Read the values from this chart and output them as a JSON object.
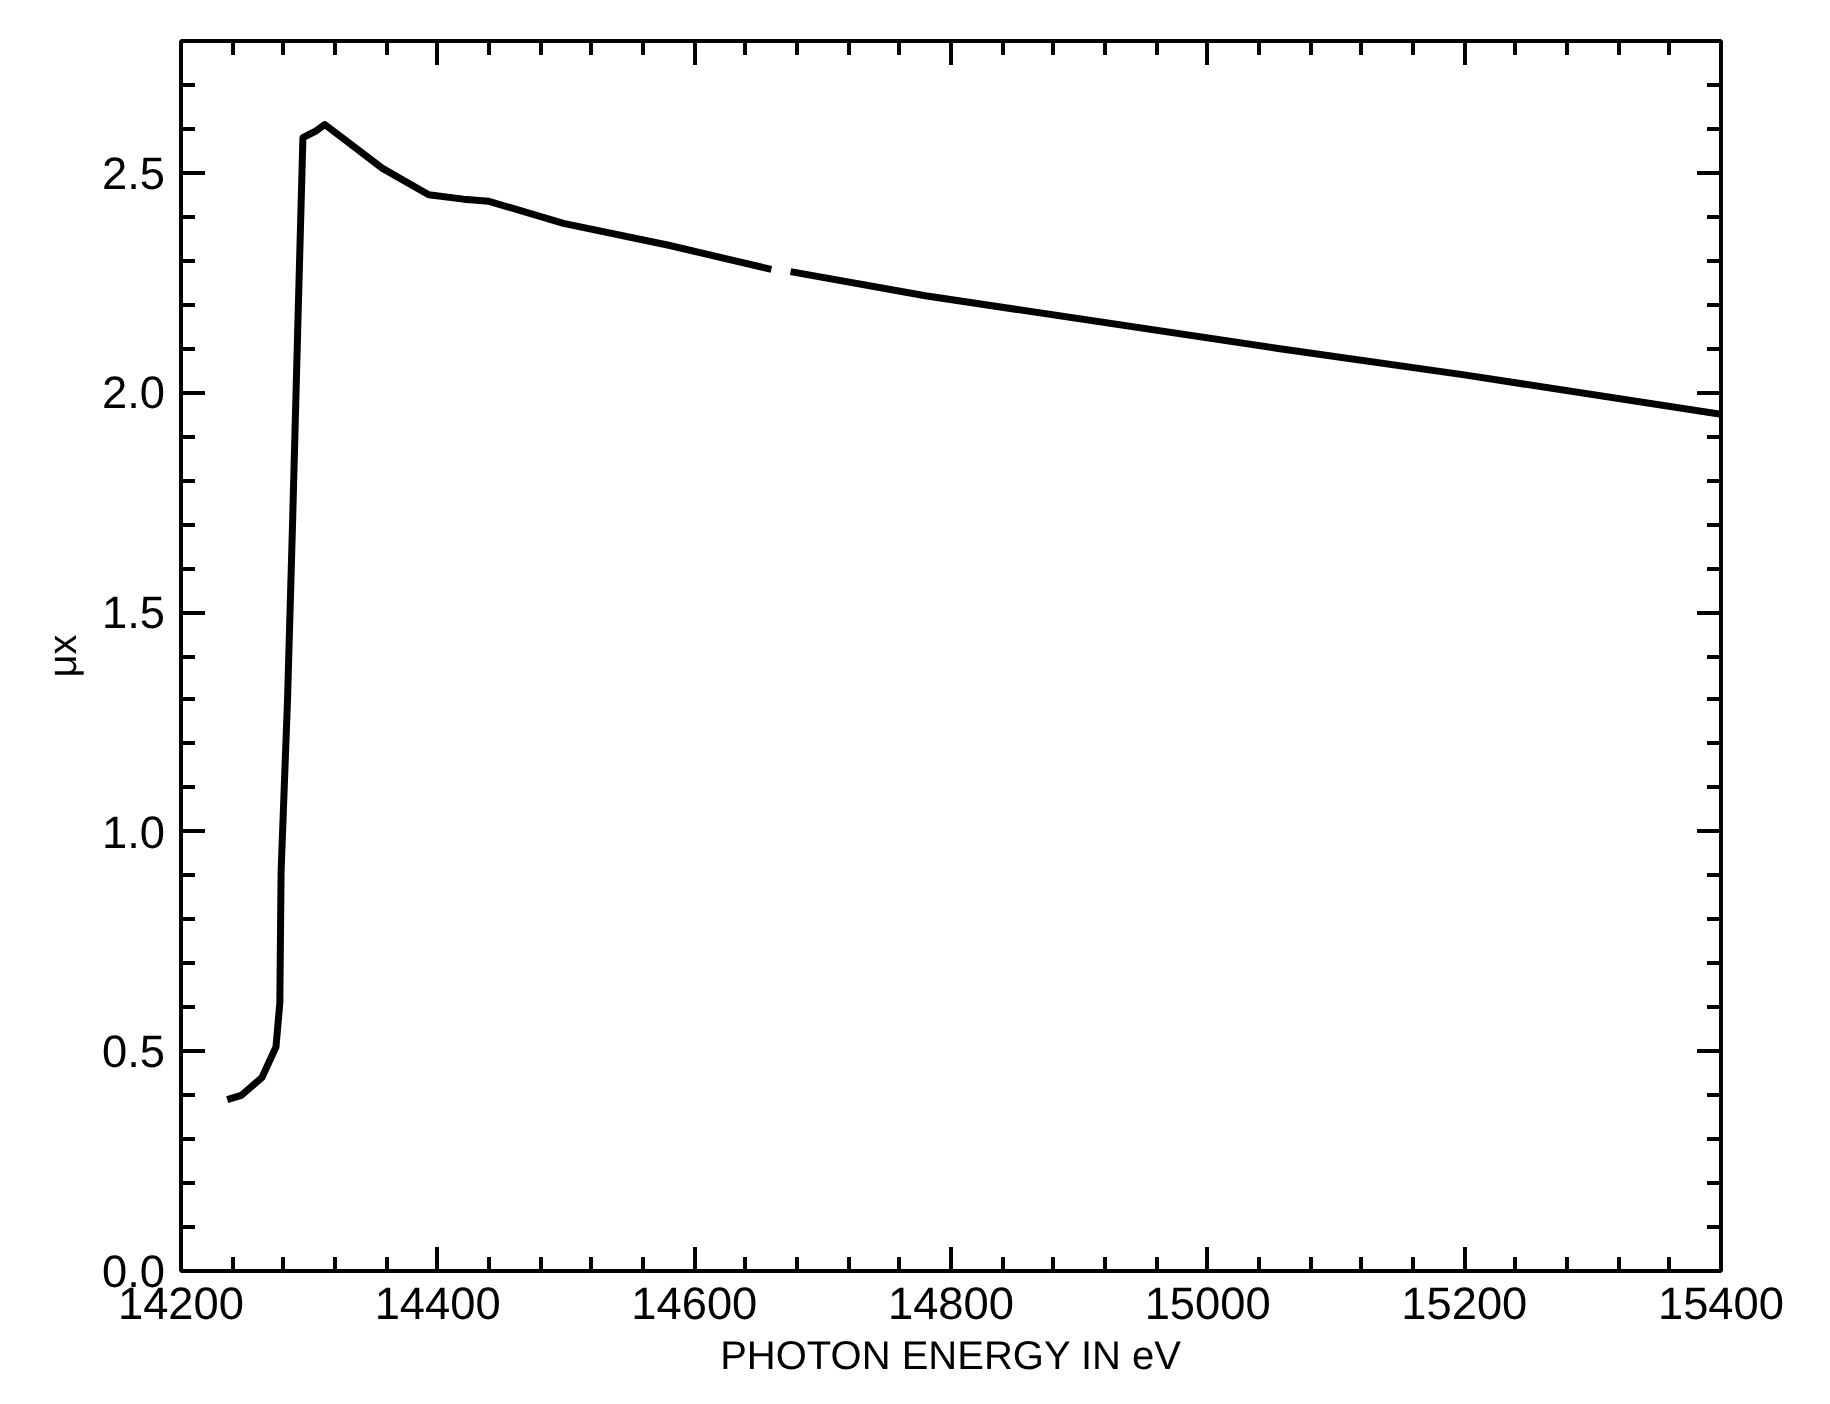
{
  "chart_data": {
    "type": "line",
    "xlabel": "PHOTON ENERGY IN eV",
    "ylabel": "μx",
    "xlim": [
      14200,
      15400
    ],
    "ylim": [
      0,
      2.8
    ],
    "xticks": [
      14200,
      {
        "value": 14240,
        "label": null
      },
      {
        "value": 14280,
        "label": null
      },
      {
        "value": 14320,
        "label": null
      },
      {
        "value": 14360,
        "label": null
      },
      14400,
      {
        "value": 14440,
        "label": null
      },
      {
        "value": 14480,
        "label": null
      },
      {
        "value": 14520,
        "label": null
      },
      {
        "value": 14560,
        "label": null
      },
      14600,
      {
        "value": 14640,
        "label": null
      },
      {
        "value": 14680,
        "label": null
      },
      {
        "value": 14720,
        "label": null
      },
      {
        "value": 14760,
        "label": null
      },
      14800,
      {
        "value": 14840,
        "label": null
      },
      {
        "value": 14880,
        "label": null
      },
      {
        "value": 14920,
        "label": null
      },
      {
        "value": 14960,
        "label": null
      },
      15000,
      {
        "value": 15040,
        "label": null
      },
      {
        "value": 15080,
        "label": null
      },
      {
        "value": 15120,
        "label": null
      },
      {
        "value": 15160,
        "label": null
      },
      15200,
      {
        "value": 15240,
        "label": null
      },
      {
        "value": 15280,
        "label": null
      },
      {
        "value": 15320,
        "label": null
      },
      {
        "value": 15360,
        "label": null
      },
      15400
    ],
    "yticks": [
      {
        "value": 0,
        "label": "0.0"
      },
      {
        "value": 0.1,
        "label": null
      },
      {
        "value": 0.2,
        "label": null
      },
      {
        "value": 0.3,
        "label": null
      },
      {
        "value": 0.4,
        "label": null
      },
      0.5,
      {
        "value": 0.6,
        "label": null
      },
      {
        "value": 0.7,
        "label": null
      },
      {
        "value": 0.8,
        "label": null
      },
      {
        "value": 0.9,
        "label": null
      },
      {
        "value": 1,
        "label": "1.0"
      },
      {
        "value": 1.1,
        "label": null
      },
      {
        "value": 1.2,
        "label": null
      },
      {
        "value": 1.3,
        "label": null
      },
      {
        "value": 1.4,
        "label": null
      },
      1.5,
      {
        "value": 1.6,
        "label": null
      },
      {
        "value": 1.7,
        "label": null
      },
      {
        "value": 1.8,
        "label": null
      },
      {
        "value": 1.9,
        "label": null
      },
      {
        "value": 2,
        "label": "2.0"
      },
      {
        "value": 2.1,
        "label": null
      },
      {
        "value": 2.2,
        "label": null
      },
      {
        "value": 2.3,
        "label": null
      },
      {
        "value": 2.4,
        "label": null
      },
      2.5,
      {
        "value": 2.6,
        "label": null
      },
      {
        "value": 2.7,
        "label": null
      },
      {
        "value": 2.8,
        "label": null
      }
    ],
    "grid": false,
    "series": [
      {
        "color": "#000000",
        "x": [
          14236,
          14247,
          14263,
          14274,
          14277,
          14278,
          14283,
          14287,
          14291,
          14295,
          14305,
          14312,
          14330,
          14357,
          14393,
          14420,
          14440,
          14498,
          14580,
          14660,
          14667,
          14675,
          14780,
          15055,
          15200,
          15400
        ],
        "values": [
          0.39,
          0.4,
          0.44,
          0.51,
          0.61,
          0.91,
          1.3,
          1.71,
          2.15,
          2.58,
          2.595,
          2.61,
          2.57,
          2.51,
          2.45,
          2.44,
          2.435,
          2.385,
          2.335,
          2.28,
          null,
          2.275,
          2.22,
          2.1,
          2.04,
          1.95
        ]
      }
    ]
  }
}
